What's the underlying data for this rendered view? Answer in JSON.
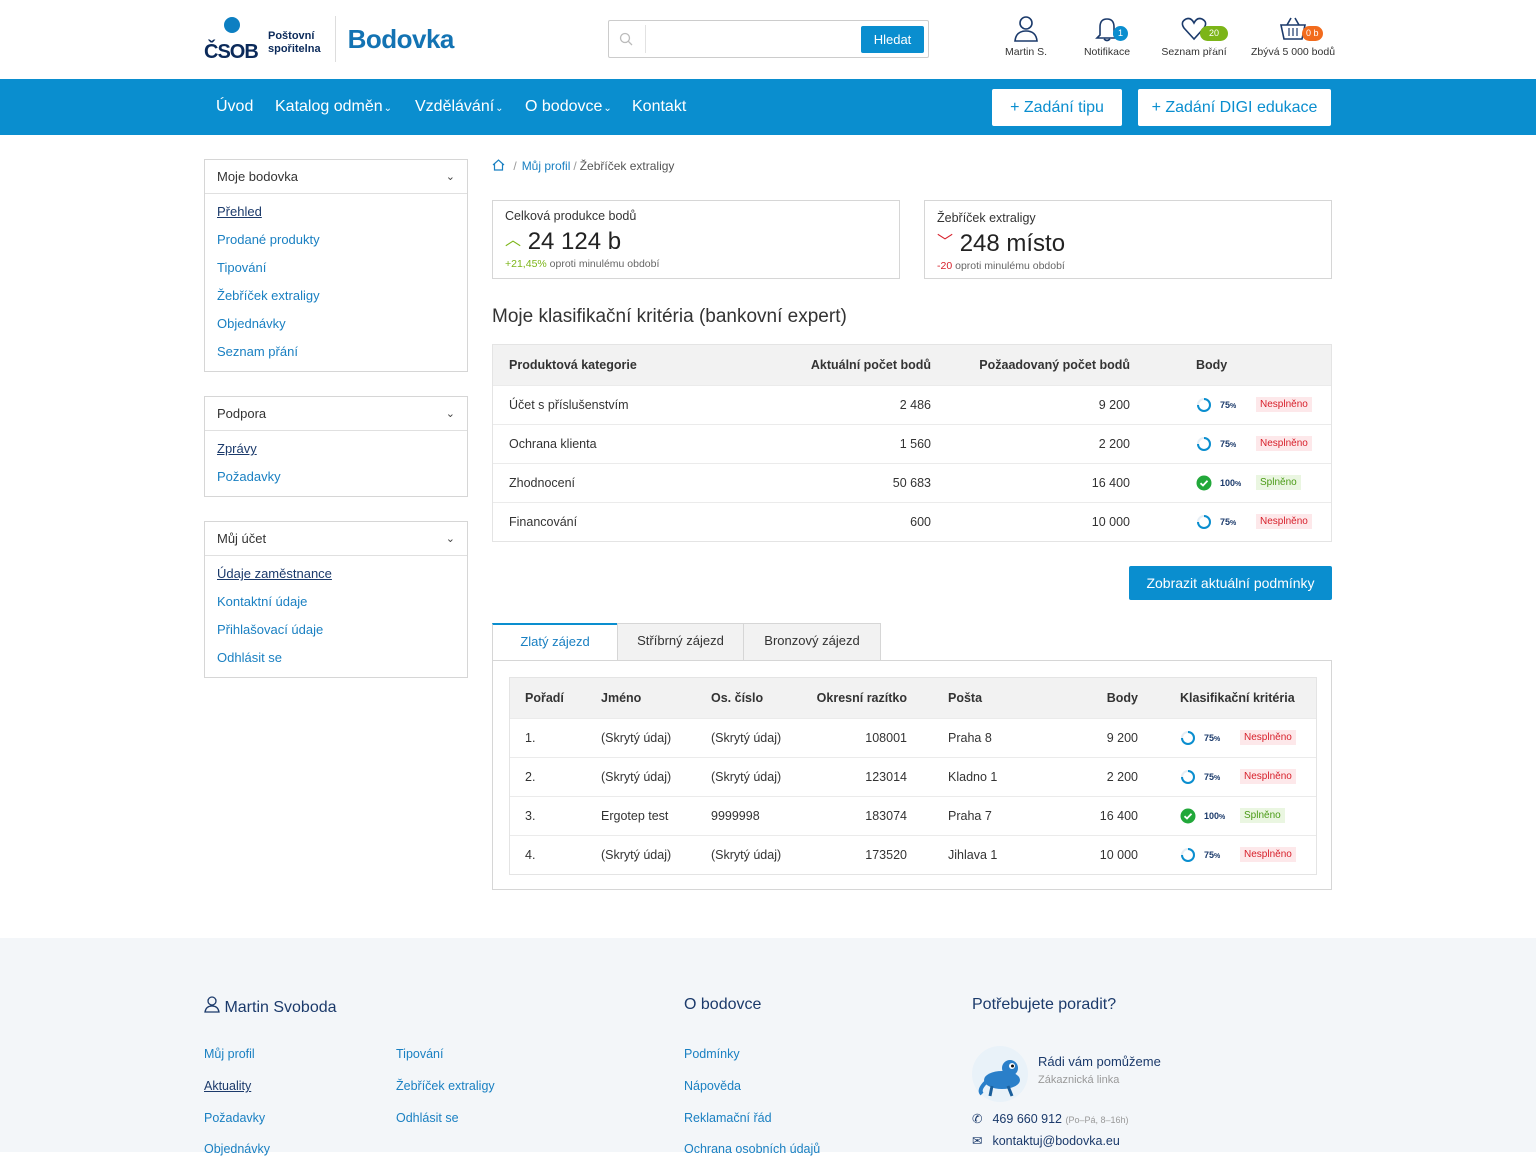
{
  "header": {
    "logo_mark": "ČSOB",
    "logo_line1": "Poštovní",
    "logo_line2": "spořitelna",
    "app_title": "Bodovka",
    "search_placeholder": "",
    "search_button": "Hledat",
    "user_label": "Martin S.",
    "notif_label": "Notifikace",
    "notif_count": "1",
    "wishlist_label": "Seznam přání",
    "wishlist_badge": "20 %",
    "cart_label": "Zbývá 5 000 bodů",
    "cart_badge": "0 b",
    "colors": {
      "primary": "#0a8ecf",
      "navy": "#1b3a6b",
      "green": "#7cb518",
      "orange": "#f26b1d",
      "red": "#d71f2a"
    }
  },
  "nav": {
    "items": [
      "Úvod",
      "Katalog odměn",
      "Vzdělávání",
      "O bodovce",
      "Kontakt"
    ],
    "btn_tip": "+ Zadání tipu",
    "btn_digi": "+ Zadání DIGI edukace"
  },
  "sidebar": {
    "box1": {
      "title": "Moje bodovka",
      "items": [
        "Přehled",
        "Prodané produkty",
        "Tipování",
        "Žebříček extraligy",
        "Objednávky",
        "Seznam přání"
      ]
    },
    "box2": {
      "title": "Podpora",
      "items": [
        "Zprávy",
        "Požadavky"
      ]
    },
    "box3": {
      "title": "Můj účet",
      "items": [
        "Údaje zaměstnance",
        "Kontaktní údaje",
        "Přihlašovací údaje",
        "Odhlásit se"
      ]
    }
  },
  "breadcrumb": {
    "profile": "Můj profil",
    "current": "Žebříček extraligy"
  },
  "kpi1": {
    "title": "Celková produkce bodů",
    "value": "24 124 b",
    "change": "+21,45%",
    "change_text": "oproti minulému období"
  },
  "kpi2": {
    "title": "Žebříček extraligy",
    "value": "248 místo",
    "change": "-20",
    "change_text": "oproti minulému období"
  },
  "criteria": {
    "title": "Moje klasifikační kritéria (bankovní expert)",
    "headers": [
      "Produktová kategorie",
      "Aktuální počet bodů",
      "Požaadovaný počet bodů",
      "Body"
    ],
    "rows": [
      {
        "category": "Účet s příslušenstvím",
        "current": "2 486",
        "required": "9 200",
        "pct": "75",
        "status": "Nesplněno",
        "done": false
      },
      {
        "category": "Ochrana klienta",
        "current": "1 560",
        "required": "2 200",
        "pct": "75",
        "status": "Nesplněno",
        "done": false
      },
      {
        "category": "Zhodnocení",
        "current": "50 683",
        "required": "16 400",
        "pct": "100",
        "status": "Splněno",
        "done": true
      },
      {
        "category": "Financování",
        "current": "600",
        "required": "10 000",
        "pct": "75",
        "status": "Nesplněno",
        "done": false
      }
    ],
    "button": "Zobrazit aktuální podmínky"
  },
  "tabs": [
    "Zlatý zájezd",
    "Stříbrný zájezd",
    "Bronzový zájezd"
  ],
  "ranking": {
    "headers": [
      "Pořadí",
      "Jméno",
      "Os. číslo",
      "Okresní razítko",
      "Pošta",
      "Body",
      "Klasifikační kritéria"
    ],
    "rows": [
      {
        "rank": "1.",
        "name": "(Skrytý údaj)",
        "id": "(Skrytý údaj)",
        "stamp": "108001",
        "post": "Praha 8",
        "points": "9 200",
        "pct": "75",
        "status": "Nesplněno",
        "done": false
      },
      {
        "rank": "2.",
        "name": "(Skrytý údaj)",
        "id": "(Skrytý údaj)",
        "stamp": "123014",
        "post": "Kladno 1",
        "points": "2 200",
        "pct": "75",
        "status": "Nesplněno",
        "done": false
      },
      {
        "rank": "3.",
        "name": "Ergotep test",
        "id": "9999998",
        "stamp": "183074",
        "post": "Praha 7",
        "points": "16 400",
        "pct": "100",
        "status": "Splněno",
        "done": true
      },
      {
        "rank": "4.",
        "name": "(Skrytý údaj)",
        "id": "(Skrytý údaj)",
        "stamp": "173520",
        "post": "Jihlava 1",
        "points": "10 000",
        "pct": "75",
        "status": "Nesplněno",
        "done": false
      }
    ]
  },
  "footer": {
    "user": "Martin Svoboda",
    "col1": [
      "Můj profil",
      "Aktuality",
      "Požadavky",
      "Objednávky"
    ],
    "col2": [
      "Tipování",
      "Žebříček extraligy",
      "Odhlásit se"
    ],
    "about_title": "O bodovce",
    "about": [
      "Podmínky",
      "Nápověda",
      "Reklamační řád",
      "Ochrana osobních údajů"
    ],
    "help_title": "Potřebujete poradit?",
    "help_heading": "Rádi vám pomůžeme",
    "help_sub": "Zákaznická linka",
    "phone": "469 660 912",
    "phone_hours": "(Po–Pá, 8–16h)",
    "email": "kontaktuj@bodovka.eu"
  }
}
